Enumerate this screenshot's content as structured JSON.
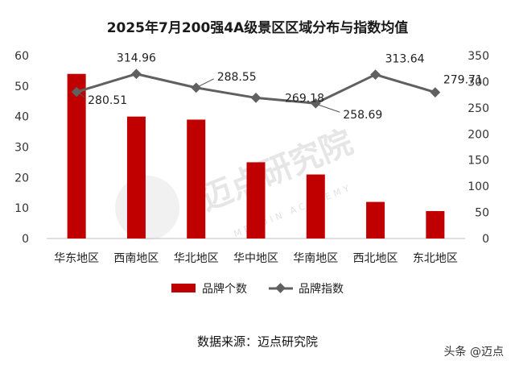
{
  "chart_data": {
    "type": "bar",
    "title": "2025年7月200强4A级景区区域分布与指数均值",
    "categories": [
      "华东地区",
      "西南地区",
      "华北地区",
      "华中地区",
      "华南地区",
      "西北地区",
      "东北地区"
    ],
    "series": [
      {
        "name": "品牌个数",
        "type": "bar",
        "axis": "left",
        "color": "#c00000",
        "values": [
          54,
          40,
          39,
          25,
          21,
          12,
          9
        ]
      },
      {
        "name": "品牌指数",
        "type": "line",
        "axis": "right",
        "color": "#606060",
        "values": [
          280.51,
          314.96,
          288.55,
          269.18,
          258.69,
          313.64,
          279.71
        ]
      }
    ],
    "y_left": {
      "min": 0,
      "max": 60,
      "ticks": [
        0,
        10,
        20,
        30,
        40,
        50,
        60
      ]
    },
    "y_right": {
      "min": 0,
      "max": 350,
      "ticks": [
        0,
        50,
        100,
        150,
        200,
        250,
        300,
        350
      ]
    },
    "grid": false,
    "legend_position": "bottom"
  },
  "source_text": "数据来源：迈点研究院",
  "credit": "头条 @迈点",
  "watermark": {
    "main": "迈点研究院",
    "sub": "MEADIN ACADEMY"
  }
}
